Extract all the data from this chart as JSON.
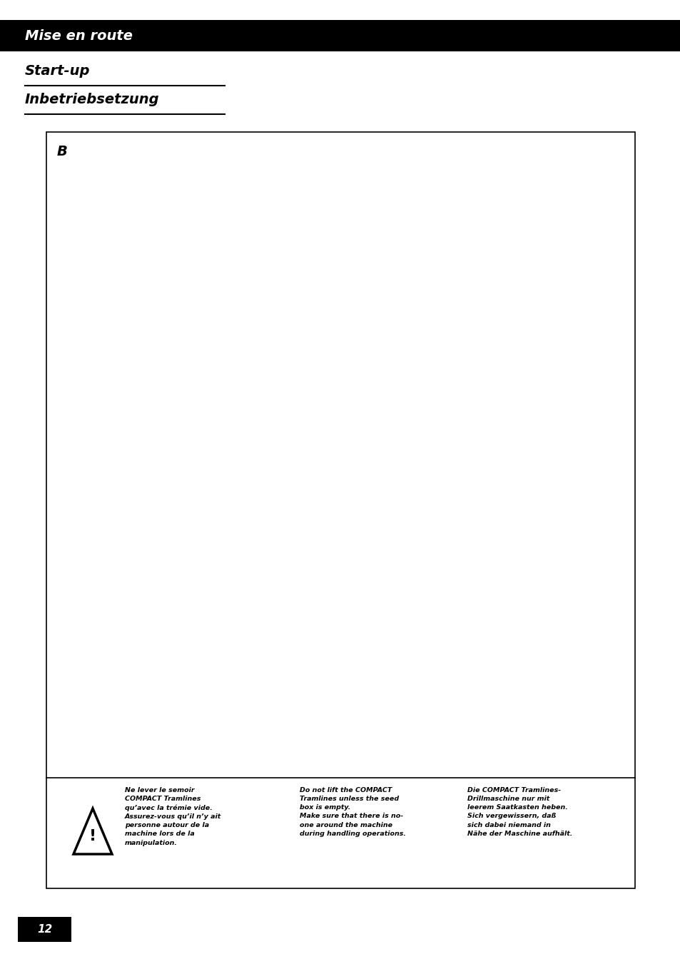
{
  "page_bg": "#ffffff",
  "header_bar_color": "#000000",
  "header_text": "Mise en route",
  "header_text_color": "#ffffff",
  "subheading1": "Start-up",
  "subheading2": "Inbetriebsetzung",
  "subheading_color": "#000000",
  "box_label": "B",
  "page_number": "12",
  "page_number_bg": "#000000",
  "page_number_color": "#ffffff",
  "warning_french": "Ne lever le semoir\nCOMPACT Tramlines\nqu’avec la trémie vide.\nAssurez-vous qu’il n’y ait\npersonne autour de la\nmachine lors de la\nmanipulation.",
  "warning_english": "Do not lift the COMPACT\nTramlines unless the seed\nbox is empty.\nMake sure that there is no-\none around the machine\nduring handling operations.",
  "warning_german": "Die COMPACT Tramlines-\nDrillmaschine nur mit\nleerem Saatkasten heben.\nSich vergewissern, daß\nsich dabei niemand in\nNähe der Maschine aufhält.",
  "fig_width": 9.54,
  "fig_height": 13.51,
  "dpi": 100
}
